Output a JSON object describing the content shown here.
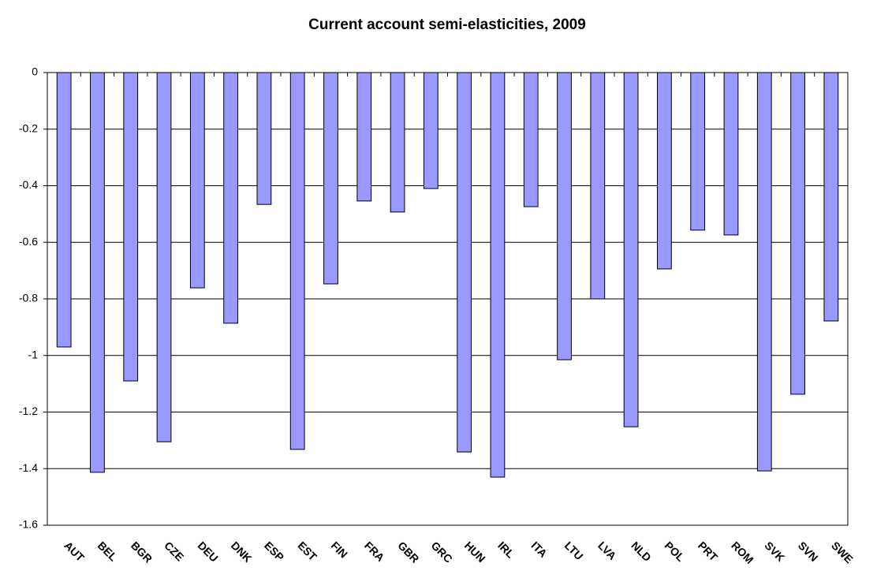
{
  "chart_data": {
    "type": "bar",
    "title": "Current account semi-elasticities, 2009",
    "categories": [
      "AUT",
      "BEL",
      "BGR",
      "CZE",
      "DEU",
      "DNK",
      "ESP",
      "EST",
      "FIN",
      "FRA",
      "GBR",
      "GRC",
      "HUN",
      "IRL",
      "ITA",
      "LTU",
      "LVA",
      "NLD",
      "POL",
      "PRT",
      "ROM",
      "SVK",
      "SVN",
      "SWE"
    ],
    "values": [
      -0.97,
      -1.413,
      -1.09,
      -1.305,
      -0.761,
      -0.886,
      -0.466,
      -1.332,
      -0.747,
      -0.454,
      -0.493,
      -0.41,
      -1.341,
      -1.43,
      -0.474,
      -1.015,
      -0.8,
      -1.252,
      -0.694,
      -0.557,
      -0.574,
      -1.408,
      -1.137,
      -0.878
    ],
    "color": "#9999ff",
    "ylim": [
      -1.6,
      0
    ],
    "yticks": [
      0,
      -0.2,
      -0.4,
      -0.6,
      -0.8,
      -1,
      -1.2,
      -1.4,
      -1.6
    ],
    "grid": true
  }
}
